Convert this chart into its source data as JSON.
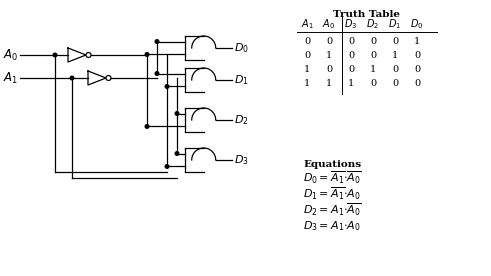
{
  "bg_color": "#ffffff",
  "truth_table_data": [
    [
      0,
      0,
      0,
      0,
      0,
      1
    ],
    [
      0,
      1,
      0,
      0,
      1,
      0
    ],
    [
      1,
      0,
      0,
      1,
      0,
      0
    ],
    [
      1,
      1,
      1,
      0,
      0,
      0
    ]
  ]
}
